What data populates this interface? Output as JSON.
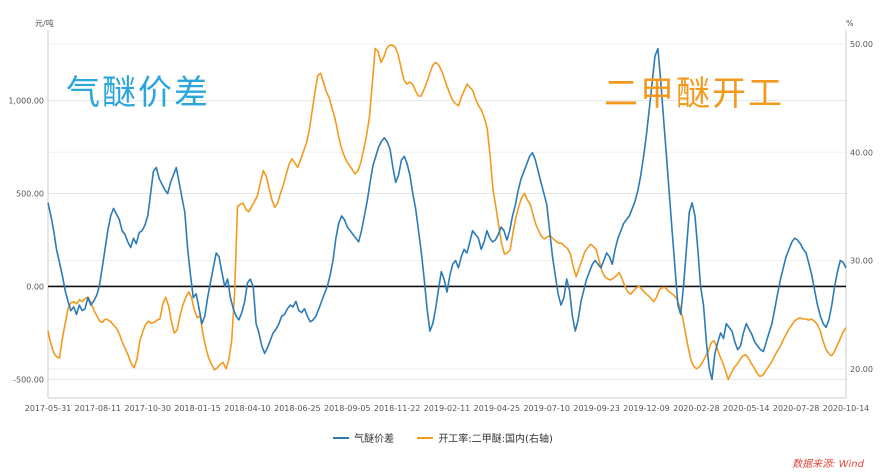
{
  "overlay": {
    "left_title": "气醚价差",
    "right_title": "二甲醚开工"
  },
  "units": {
    "left": "元/吨",
    "right": "%"
  },
  "source": "数据来源: Wind",
  "colors": {
    "spread": "#2c7bb6",
    "rate": "#f39a1e"
  },
  "chart_data": {
    "type": "line",
    "y_left": {
      "ticks": [
        -500,
        0,
        500,
        1000
      ],
      "tick_labels": [
        "-500.00",
        "0.00",
        "500.00",
        "1,000.00"
      ],
      "range": [
        -600,
        1380
      ]
    },
    "y_right": {
      "ticks": [
        20,
        30,
        40,
        50
      ],
      "tick_labels": [
        "20.00",
        "30.00",
        "40.00",
        "50.00"
      ],
      "range": [
        17.3,
        51.3
      ]
    },
    "x_tick_labels": [
      "2017-05-31",
      "2017-08-11",
      "2017-10-30",
      "2018-01-15",
      "2018-04-10",
      "2018-06-25",
      "2018-09-05",
      "2018-11-22",
      "2019-02-11",
      "2019-04-25",
      "2019-07-10",
      "2019-09-23",
      "2019-12-09",
      "2020-02-28",
      "2020-05-14",
      "2020-07-28",
      "2020-10-14"
    ],
    "series": [
      {
        "name": "气醚价差",
        "axis": "left",
        "values": [
          450,
          380,
          300,
          200,
          130,
          60,
          -20,
          -80,
          -130,
          -110,
          -150,
          -100,
          -130,
          -120,
          -60,
          -100,
          -80,
          -50,
          0,
          100,
          200,
          300,
          380,
          420,
          390,
          360,
          300,
          280,
          240,
          210,
          260,
          230,
          290,
          300,
          330,
          380,
          500,
          620,
          640,
          580,
          550,
          520,
          500,
          560,
          600,
          640,
          560,
          480,
          400,
          200,
          60,
          -60,
          -40,
          -120,
          -200,
          -160,
          -60,
          20,
          100,
          180,
          160,
          80,
          0,
          40,
          -60,
          -120,
          -160,
          -180,
          -140,
          -80,
          20,
          40,
          0,
          -200,
          -250,
          -320,
          -360,
          -330,
          -290,
          -250,
          -230,
          -200,
          -160,
          -150,
          -120,
          -100,
          -110,
          -80,
          -130,
          -140,
          -120,
          -160,
          -190,
          -180,
          -160,
          -120,
          -80,
          -40,
          0,
          60,
          140,
          260,
          340,
          380,
          360,
          320,
          300,
          280,
          260,
          240,
          300,
          380,
          460,
          560,
          650,
          700,
          750,
          780,
          800,
          780,
          740,
          640,
          560,
          600,
          680,
          700,
          660,
          600,
          500,
          420,
          300,
          180,
          40,
          -120,
          -240,
          -200,
          -120,
          -20,
          80,
          40,
          -30,
          60,
          120,
          140,
          100,
          160,
          200,
          180,
          240,
          300,
          280,
          260,
          200,
          240,
          300,
          260,
          240,
          250,
          280,
          320,
          300,
          250,
          300,
          380,
          440,
          520,
          580,
          620,
          660,
          700,
          720,
          680,
          620,
          560,
          500,
          440,
          300,
          160,
          60,
          -40,
          -100,
          -60,
          40,
          -20,
          -160,
          -240,
          -180,
          -80,
          -20,
          40,
          80,
          120,
          140,
          120,
          100,
          140,
          180,
          160,
          120,
          200,
          260,
          300,
          340,
          360,
          380,
          420,
          460,
          520,
          600,
          700,
          820,
          960,
          1100,
          1240,
          1280,
          1100,
          900,
          700,
          500,
          300,
          100,
          -100,
          -150,
          0,
          200,
          400,
          450,
          380,
          200,
          0,
          -100,
          -300,
          -440,
          -500,
          -360,
          -300,
          -250,
          -280,
          -200,
          -220,
          -240,
          -300,
          -340,
          -320,
          -250,
          -200,
          -230,
          -260,
          -300,
          -320,
          -340,
          -350,
          -300,
          -250,
          -200,
          -120,
          -40,
          40,
          100,
          160,
          200,
          240,
          260,
          250,
          230,
          200,
          180,
          120,
          60,
          -20,
          -100,
          -160,
          -200,
          -220,
          -180,
          -100,
          0,
          80,
          140,
          130,
          100
        ]
      },
      {
        "name": "开工率:二甲醚:国内(右轴)",
        "axis": "right",
        "values": [
          23.5,
          22.3,
          21.5,
          21.1,
          21.0,
          22.8,
          24.2,
          25.6,
          26.1,
          26.2,
          26.0,
          26.4,
          26.2,
          26.5,
          26.6,
          26.1,
          25.4,
          24.9,
          24.4,
          24.3,
          24.6,
          24.5,
          24.3,
          24.0,
          23.7,
          23.1,
          22.4,
          21.8,
          21.2,
          20.5,
          20.1,
          20.9,
          22.6,
          23.4,
          24.1,
          24.4,
          24.2,
          24.3,
          24.5,
          24.6,
          26.0,
          26.6,
          25.8,
          24.4,
          23.3,
          23.6,
          24.9,
          25.9,
          26.6,
          27.1,
          26.6,
          25.4,
          24.7,
          24.9,
          23.2,
          21.9,
          21.0,
          20.4,
          19.9,
          20.1,
          20.4,
          20.6,
          20.0,
          20.8,
          22.6,
          27.0,
          35.0,
          35.2,
          35.3,
          34.7,
          34.5,
          35.0,
          35.5,
          36.0,
          37.2,
          38.3,
          37.8,
          36.7,
          35.6,
          34.9,
          35.3,
          36.2,
          37.0,
          38.0,
          38.9,
          39.4,
          39.0,
          38.6,
          39.3,
          40.1,
          40.8,
          42.0,
          43.8,
          45.6,
          47.1,
          47.3,
          46.4,
          45.6,
          45.0,
          44.0,
          43.1,
          41.8,
          40.6,
          39.8,
          39.2,
          38.8,
          38.4,
          38.0,
          38.3,
          39.1,
          40.3,
          41.6,
          43.3,
          46.5,
          49.6,
          49.3,
          48.3,
          48.8,
          49.6,
          49.9,
          49.9,
          49.7,
          49.0,
          47.8,
          46.7,
          46.3,
          46.5,
          46.3,
          45.7,
          45.2,
          45.2,
          45.8,
          46.5,
          47.3,
          48.0,
          48.3,
          48.1,
          47.6,
          46.9,
          46.1,
          45.4,
          44.8,
          44.5,
          44.3,
          45.1,
          45.7,
          46.3,
          46.0,
          45.7,
          44.9,
          44.3,
          43.9,
          43.2,
          42.2,
          39.7,
          36.6,
          35.0,
          33.2,
          31.6,
          30.6,
          30.7,
          31.0,
          32.6,
          34.0,
          35.0,
          35.8,
          36.2,
          35.6,
          35.2,
          34.2,
          33.3,
          32.7,
          32.2,
          32.0,
          32.2,
          32.3,
          32.0,
          31.8,
          31.6,
          31.6,
          31.3,
          31.1,
          30.6,
          29.4,
          28.5,
          29.3,
          30.0,
          30.8,
          31.2,
          31.5,
          31.3,
          31.0,
          30.0,
          29.0,
          28.5,
          28.3,
          28.2,
          28.4,
          28.6,
          28.9,
          28.3,
          27.6,
          27.1,
          26.9,
          27.2,
          27.5,
          27.6,
          27.3,
          27.0,
          26.8,
          26.5,
          26.2,
          26.6,
          27.3,
          27.5,
          27.5,
          27.2,
          27.0,
          26.8,
          26.5,
          25.8,
          24.8,
          23.4,
          22.0,
          20.8,
          20.2,
          20.0,
          20.2,
          20.6,
          21.1,
          21.6,
          22.4,
          22.6,
          22.0,
          21.2,
          20.6,
          19.8,
          19.0,
          19.6,
          20.1,
          20.4,
          20.8,
          21.2,
          21.3,
          21.0,
          20.5,
          20.1,
          19.6,
          19.3,
          19.4,
          19.8,
          20.2,
          20.6,
          21.1,
          21.6,
          22.0,
          22.6,
          23.1,
          23.6,
          24.0,
          24.4,
          24.6,
          24.7,
          24.6,
          24.6,
          24.5,
          24.6,
          24.4,
          24.1,
          23.5,
          22.6,
          21.8,
          21.4,
          21.2,
          21.6,
          22.2,
          22.8,
          23.4,
          23.8
        ]
      }
    ],
    "zero_line": 0,
    "grid": "horizontal",
    "legend": "bottom"
  }
}
